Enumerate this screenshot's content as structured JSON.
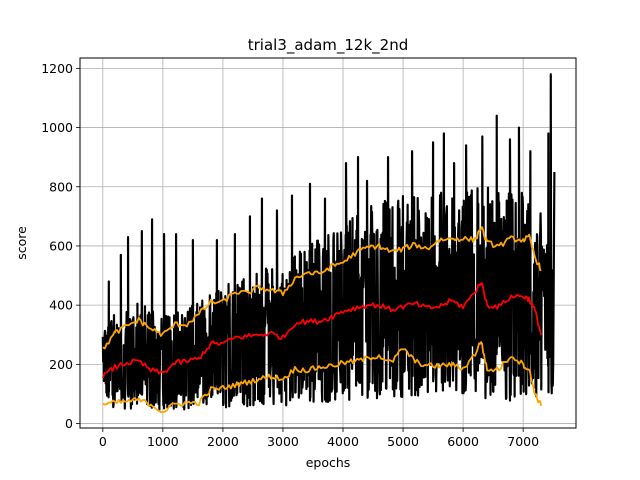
{
  "chart_data": {
    "type": "line",
    "title": "trial3_adam_12k_2nd",
    "xlabel": "epochs",
    "ylabel": "score",
    "xlim": [
      -380,
      7880
    ],
    "ylim": [
      -15,
      1235
    ],
    "xticks": [
      0,
      1000,
      2000,
      3000,
      4000,
      5000,
      6000,
      7000
    ],
    "yticks": [
      0,
      200,
      400,
      600,
      800,
      1000,
      1200
    ],
    "grid": true,
    "colors": {
      "raw": "#000000",
      "mean": "#ff0000",
      "band": "#ffa500"
    },
    "series": [
      {
        "key": "raw",
        "kind": "noisy",
        "x": [
          0,
          250,
          500,
          750,
          1000,
          1250,
          1500,
          1750,
          2000,
          2250,
          2500,
          2750,
          3000,
          3250,
          3500,
          3750,
          4000,
          4250,
          4500,
          4750,
          5000,
          5250,
          5500,
          5750,
          6000,
          6250,
          6500,
          6750,
          7000,
          7250,
          7500
        ],
        "low": [
          60,
          50,
          50,
          50,
          45,
          45,
          50,
          50,
          50,
          55,
          55,
          60,
          60,
          65,
          65,
          70,
          80,
          80,
          85,
          85,
          90,
          85,
          85,
          80,
          80,
          90,
          80,
          75,
          75,
          60,
          90
        ],
        "high": [
          330,
          380,
          410,
          410,
          370,
          380,
          400,
          430,
          470,
          480,
          500,
          540,
          550,
          590,
          610,
          640,
          680,
          710,
          740,
          760,
          770,
          770,
          780,
          790,
          790,
          800,
          800,
          790,
          780,
          740,
          560
        ],
        "spikes": [
          [
            100,
            480
          ],
          [
            300,
            570
          ],
          [
            420,
            630
          ],
          [
            650,
            650
          ],
          [
            820,
            690
          ],
          [
            1020,
            640
          ],
          [
            1220,
            640
          ],
          [
            1500,
            620
          ],
          [
            1900,
            620
          ],
          [
            2200,
            640
          ],
          [
            2450,
            700
          ],
          [
            2650,
            760
          ],
          [
            2900,
            720
          ],
          [
            3150,
            770
          ],
          [
            3450,
            810
          ],
          [
            3700,
            760
          ],
          [
            4050,
            880
          ],
          [
            4250,
            900
          ],
          [
            4400,
            820
          ],
          [
            4750,
            900
          ],
          [
            5150,
            920
          ],
          [
            5500,
            950
          ],
          [
            5680,
            980
          ],
          [
            5850,
            880
          ],
          [
            6050,
            940
          ],
          [
            6320,
            970
          ],
          [
            6560,
            1040
          ],
          [
            6780,
            960
          ],
          [
            6930,
            1000
          ],
          [
            7120,
            920
          ],
          [
            7420,
            980
          ],
          [
            7460,
            1180
          ],
          [
            7520,
            850
          ]
        ]
      },
      {
        "key": "upper",
        "x": [
          0,
          200,
          400,
          600,
          800,
          1000,
          1200,
          1400,
          1600,
          1800,
          2000,
          2200,
          2400,
          2600,
          2800,
          3000,
          3200,
          3400,
          3600,
          3800,
          4000,
          4200,
          4400,
          4600,
          4800,
          5000,
          5200,
          5400,
          5600,
          5800,
          6000,
          6200,
          6300,
          6400,
          6600,
          6800,
          7000,
          7100,
          7200,
          7300
        ],
        "y": [
          250,
          305,
          330,
          350,
          320,
          300,
          335,
          335,
          370,
          410,
          410,
          445,
          440,
          460,
          450,
          440,
          490,
          510,
          505,
          530,
          545,
          575,
          595,
          600,
          580,
          590,
          605,
          590,
          620,
          625,
          625,
          620,
          665,
          610,
          600,
          625,
          620,
          630,
          560,
          520
        ]
      },
      {
        "key": "mean",
        "x": [
          0,
          200,
          400,
          600,
          800,
          1000,
          1200,
          1400,
          1600,
          1800,
          2000,
          2200,
          2400,
          2600,
          2800,
          3000,
          3200,
          3400,
          3600,
          3800,
          4000,
          4200,
          4400,
          4600,
          4800,
          5000,
          5200,
          5400,
          5600,
          5800,
          6000,
          6200,
          6300,
          6400,
          6600,
          6800,
          7000,
          7100,
          7200,
          7300
        ],
        "y": [
          160,
          190,
          205,
          210,
          180,
          170,
          205,
          210,
          220,
          270,
          270,
          290,
          295,
          300,
          305,
          290,
          340,
          345,
          345,
          360,
          380,
          390,
          400,
          400,
          385,
          395,
          405,
          390,
          395,
          415,
          395,
          445,
          480,
          400,
          395,
          430,
          430,
          420,
          380,
          300
        ]
      },
      {
        "key": "lower",
        "x": [
          0,
          200,
          400,
          600,
          800,
          1000,
          1200,
          1400,
          1600,
          1800,
          2000,
          2200,
          2400,
          2600,
          2800,
          3000,
          3200,
          3400,
          3600,
          3800,
          4000,
          4200,
          4400,
          4600,
          4800,
          5000,
          5200,
          5400,
          5600,
          5800,
          6000,
          6200,
          6300,
          6400,
          6600,
          6800,
          7000,
          7100,
          7200,
          7300
        ],
        "y": [
          65,
          70,
          75,
          80,
          65,
          40,
          65,
          70,
          70,
          115,
          120,
          130,
          140,
          150,
          160,
          150,
          185,
          180,
          190,
          195,
          205,
          210,
          220,
          230,
          205,
          255,
          210,
          195,
          195,
          200,
          185,
          235,
          280,
          180,
          185,
          230,
          200,
          180,
          100,
          60
        ]
      }
    ]
  }
}
